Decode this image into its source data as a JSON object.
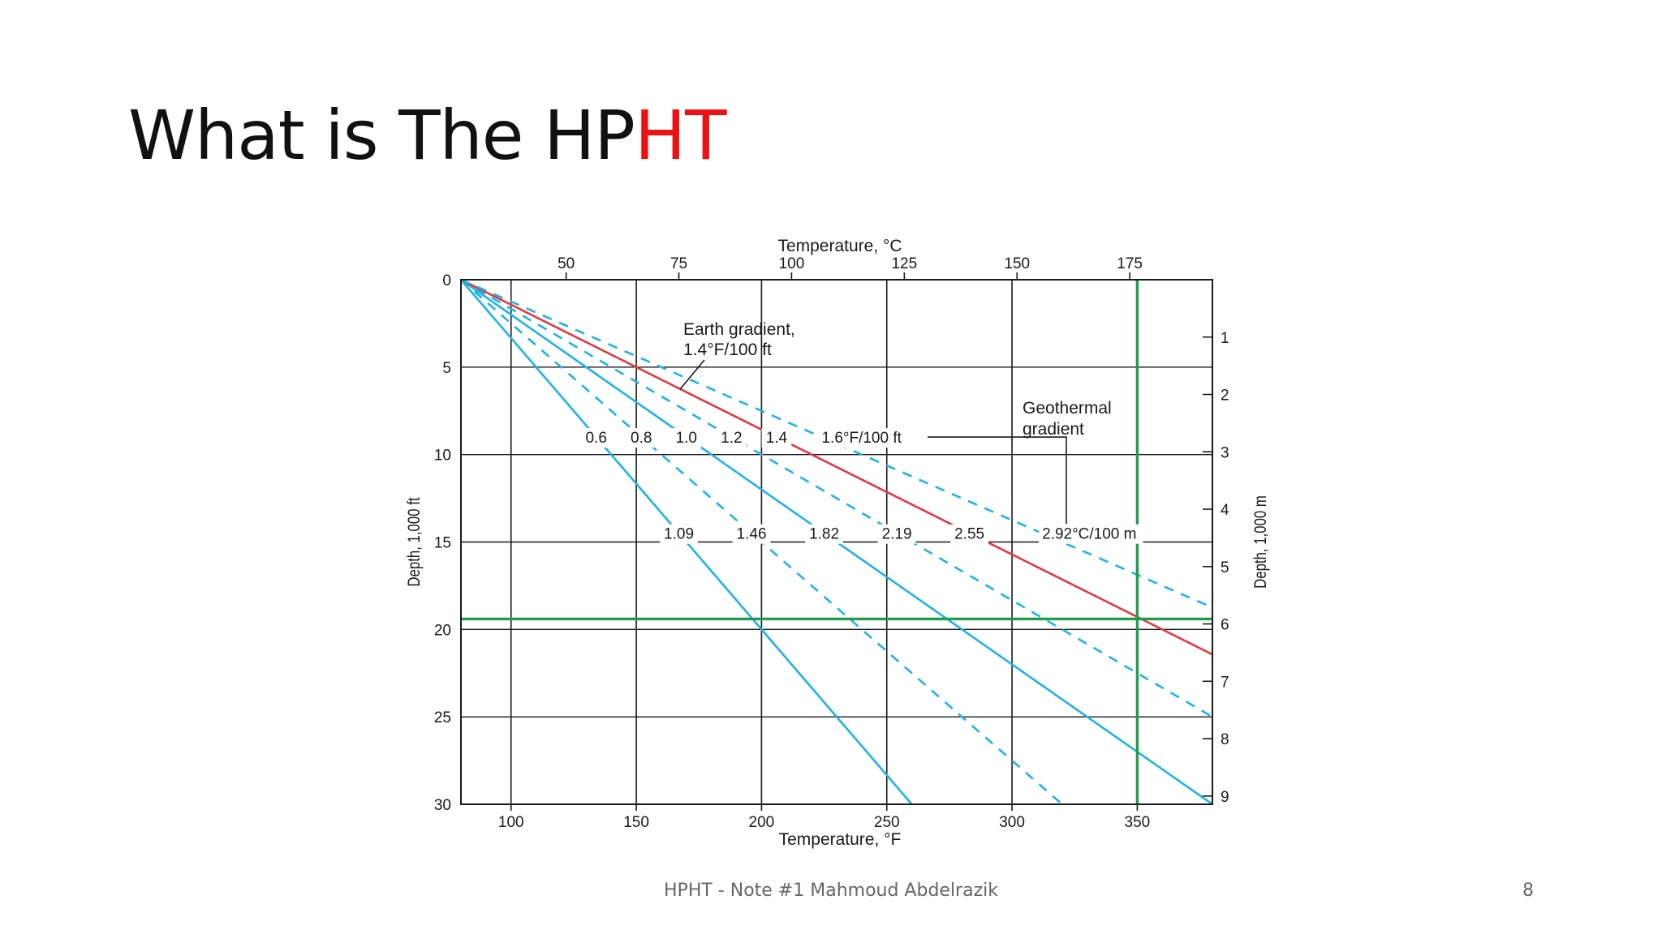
{
  "slide": {
    "title_prefix": "What is The HP",
    "title_accent": "HT",
    "footer": "HPHT - Note #1 Mahmoud Abdelrazik",
    "page_number": "8"
  },
  "colors": {
    "title_accent": "#ee1111",
    "earth_gradient_line": "#e0393e",
    "gradient_lines": "#1eb4e4",
    "highlight_lines": "#1f9d4b",
    "grid": "#1a1a1a"
  },
  "chart_data": {
    "type": "line",
    "axes": {
      "x_bottom": {
        "label": "Temperature, °F",
        "range": [
          80,
          380
        ],
        "ticks": [
          100,
          150,
          200,
          250,
          300,
          350
        ]
      },
      "x_top": {
        "label": "Temperature, °C",
        "ticks": [
          "50",
          "75",
          "100",
          "125",
          "150",
          "175"
        ]
      },
      "y_left": {
        "label": "Depth, 1,000 ft",
        "range": [
          0,
          30
        ],
        "ticks": [
          0,
          5,
          10,
          15,
          20,
          25,
          30
        ],
        "inverted": true
      },
      "y_right": {
        "label": "Depth, 1,000 m",
        "ticks": [
          "1",
          "2",
          "3",
          "4",
          "5",
          "6",
          "7",
          "8",
          "9"
        ]
      }
    },
    "grid": true,
    "surface_temperature_f": 80,
    "series": [
      {
        "gradient_f_per_100ft": 0.6,
        "style": "solid"
      },
      {
        "gradient_f_per_100ft": 0.8,
        "style": "dashed"
      },
      {
        "gradient_f_per_100ft": 1.0,
        "style": "solid"
      },
      {
        "gradient_f_per_100ft": 1.2,
        "style": "dashed"
      },
      {
        "gradient_f_per_100ft": 1.4,
        "style": "solid",
        "earth_gradient": true
      },
      {
        "gradient_f_per_100ft": 1.6,
        "style": "dashed"
      }
    ],
    "gradient_labels_f": [
      "0.6",
      "0.8",
      "1.0",
      "1.2",
      "1.4",
      "1.6°F/100 ft"
    ],
    "gradient_labels_c": [
      "1.09",
      "1.46",
      "1.82",
      "2.19",
      "2.55",
      "2.92°C/100 m"
    ],
    "annotations": {
      "earth_gradient": [
        "Earth gradient,",
        "1.4°F/100 ft"
      ],
      "geothermal_gradient": [
        "Geothermal",
        "gradient"
      ]
    },
    "highlight": {
      "temperature_f": 350,
      "depth_kft": 19.4
    }
  }
}
